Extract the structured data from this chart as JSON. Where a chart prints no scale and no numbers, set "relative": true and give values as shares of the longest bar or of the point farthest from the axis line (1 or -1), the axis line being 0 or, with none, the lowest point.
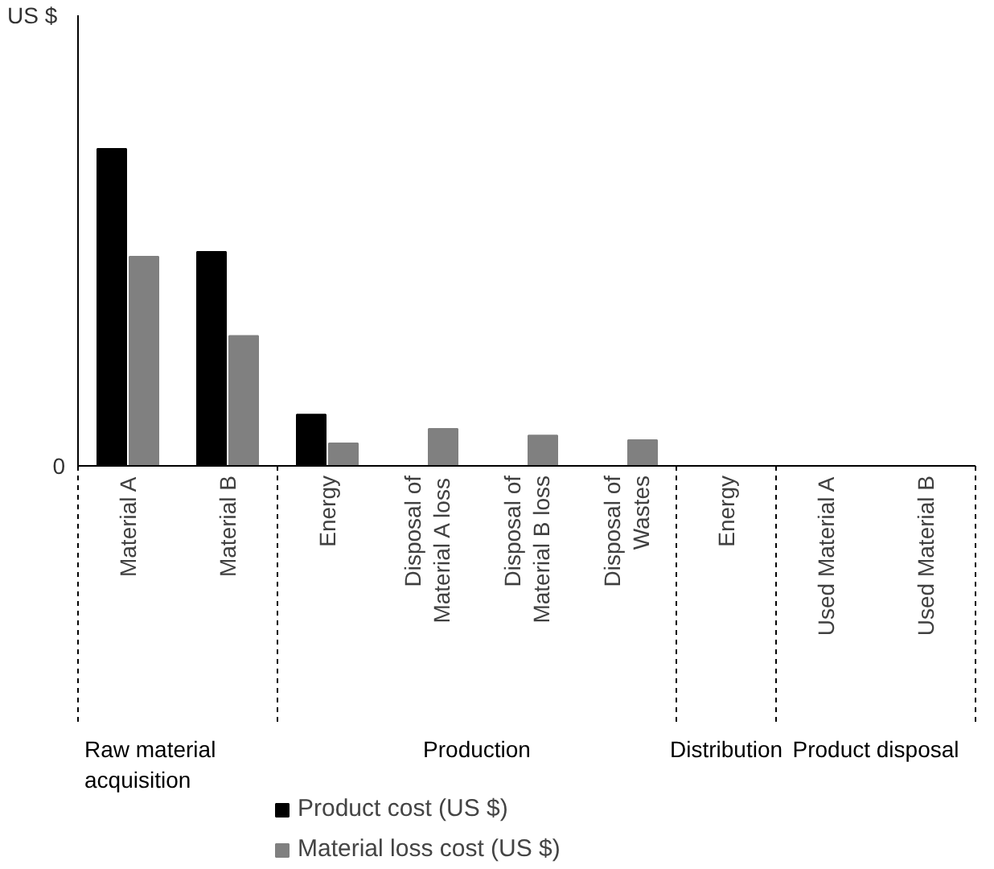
{
  "chart_data": {
    "type": "bar",
    "relative": true,
    "categories": [
      "Material A",
      "Material B",
      "Energy",
      "Disposal of Material A loss",
      "Disposal of Material B loss",
      "Disposal of Wastes",
      "Energy",
      "Used Material A",
      "Used Material B"
    ],
    "series": [
      {
        "name": "Product cost (US $)",
        "color": "#000000",
        "values": [
          1,
          0.675,
          0.162,
          null,
          null,
          null,
          null,
          null,
          null
        ]
      },
      {
        "name": "Material loss cost (US $)",
        "color": "#808080",
        "values": [
          0.66,
          0.41,
          0.071,
          0.117,
          0.096,
          0.081,
          null,
          null,
          null
        ]
      }
    ],
    "annotations": [
      "US $",
      "0",
      "Raw material acquisition",
      "Production",
      "Distribution",
      "Product disposal"
    ],
    "legend": "bottom",
    "grid": false
  }
}
